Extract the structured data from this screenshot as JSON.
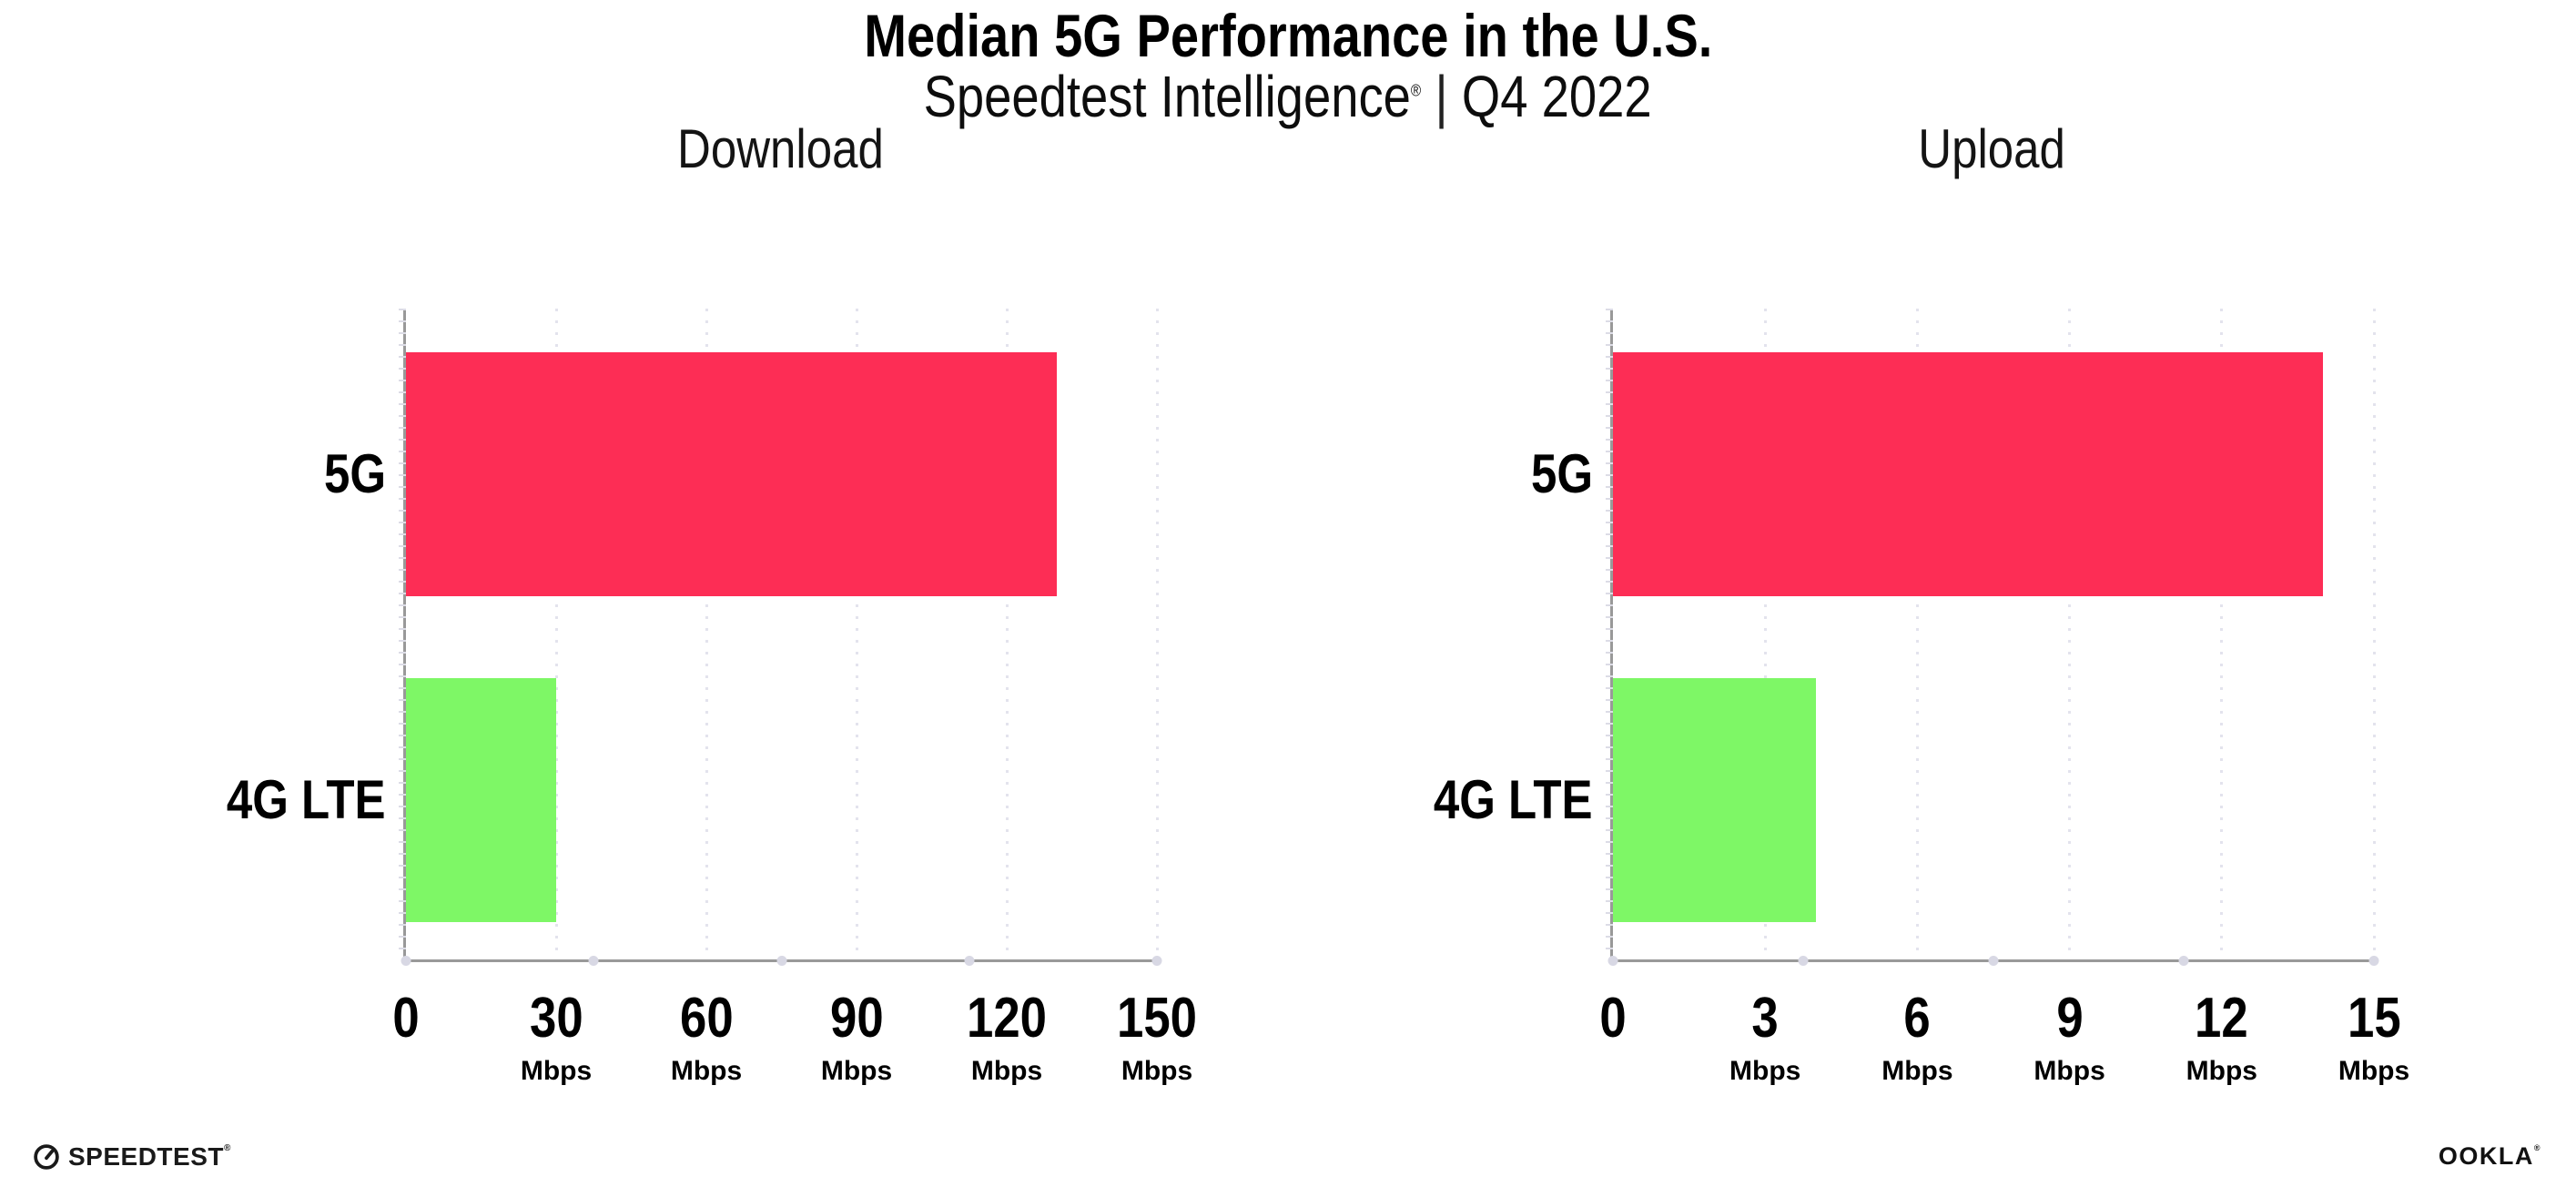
{
  "header": {
    "title": "Median 5G Performance in the U.S.",
    "subtitle_brand": "Speedtest Intelligence",
    "subtitle_reg": "®",
    "subtitle_separator": "|",
    "subtitle_period": "Q4 2022"
  },
  "chart_data": [
    {
      "type": "bar",
      "orientation": "horizontal",
      "title": "Download",
      "categories": [
        "5G",
        "4G LTE"
      ],
      "values": [
        130,
        30
      ],
      "unit": "Mbps",
      "xlim": [
        0,
        150
      ],
      "xticks": [
        0,
        30,
        60,
        90,
        120,
        150
      ],
      "xtick_unit": "Mbps",
      "bar_colors": [
        "#FD2D55",
        "#7EF766"
      ],
      "grid": "vertical-dotted",
      "legend": "none"
    },
    {
      "type": "bar",
      "orientation": "horizontal",
      "title": "Upload",
      "categories": [
        "5G",
        "4G LTE"
      ],
      "values": [
        14,
        4
      ],
      "unit": "Mbps",
      "xlim": [
        0,
        15
      ],
      "xticks": [
        0,
        3,
        6,
        9,
        12,
        15
      ],
      "xtick_unit": "Mbps",
      "bar_colors": [
        "#FD2D55",
        "#7EF766"
      ],
      "grid": "vertical-dotted",
      "legend": "none"
    }
  ],
  "footer": {
    "speedtest_label": "SPEEDTEST",
    "speedtest_reg": "®",
    "ookla_label": "OOKLA",
    "ookla_reg": "®"
  },
  "colors": {
    "bar_5g": "#FD2D55",
    "bar_4g_lte": "#7EF766",
    "axis": "#999999",
    "gridline": "#E3E3ED",
    "axis_dot": "#D8D8E4",
    "text": "#000000"
  }
}
